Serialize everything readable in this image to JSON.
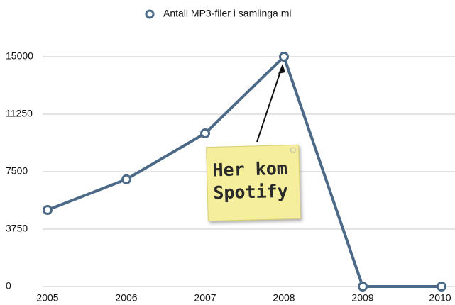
{
  "chart_data": {
    "type": "line",
    "categories": [
      "2005",
      "2006",
      "2007",
      "2008",
      "2009",
      "2010"
    ],
    "series": [
      {
        "name": "Antall MP3-filer i samlinga mi",
        "color": "#4c6a88",
        "values": [
          5000,
          7000,
          10000,
          15000,
          0,
          0
        ]
      }
    ],
    "ylim": [
      0,
      15000
    ],
    "yticks": [
      0,
      3750,
      7500,
      11250,
      15000
    ],
    "grid": true,
    "legend": "top",
    "annotation": [
      "Her kom",
      "Spotify"
    ]
  }
}
